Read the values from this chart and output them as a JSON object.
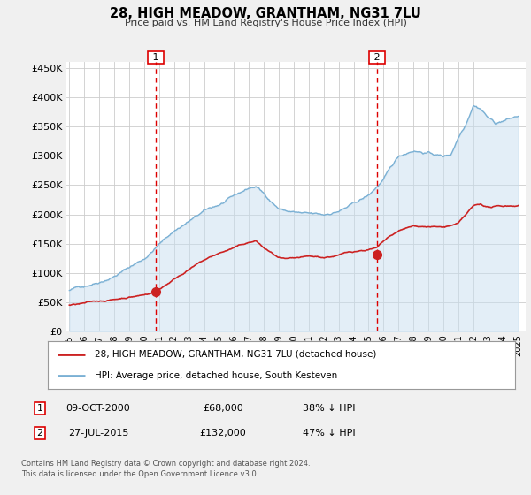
{
  "title": "28, HIGH MEADOW, GRANTHAM, NG31 7LU",
  "subtitle": "Price paid vs. HM Land Registry's House Price Index (HPI)",
  "ylabel_ticks": [
    "£0",
    "£50K",
    "£100K",
    "£150K",
    "£200K",
    "£250K",
    "£300K",
    "£350K",
    "£400K",
    "£450K"
  ],
  "ytick_values": [
    0,
    50000,
    100000,
    150000,
    200000,
    250000,
    300000,
    350000,
    400000,
    450000
  ],
  "ylim": [
    0,
    460000
  ],
  "xlim_start": 1994.8,
  "xlim_end": 2025.5,
  "xtick_years": [
    1995,
    1996,
    1997,
    1998,
    1999,
    2000,
    2001,
    2002,
    2003,
    2004,
    2005,
    2006,
    2007,
    2008,
    2009,
    2010,
    2011,
    2012,
    2013,
    2014,
    2015,
    2016,
    2017,
    2018,
    2019,
    2020,
    2021,
    2022,
    2023,
    2024,
    2025
  ],
  "bg_color": "#f0f0f0",
  "plot_bg_color": "#ffffff",
  "grid_color": "#cccccc",
  "hpi_line_color": "#7ab0d4",
  "hpi_fill_color": "#c8dff0",
  "price_line_color": "#cc2222",
  "vline_color": "#dd0000",
  "marker1_x": 2000.78,
  "marker1_y": 68000,
  "marker2_x": 2015.57,
  "marker2_y": 132000,
  "legend_label1": "28, HIGH MEADOW, GRANTHAM, NG31 7LU (detached house)",
  "legend_label2": "HPI: Average price, detached house, South Kesteven",
  "table_row1": [
    "1",
    "09-OCT-2000",
    "£68,000",
    "38% ↓ HPI"
  ],
  "table_row2": [
    "2",
    "27-JUL-2015",
    "£132,000",
    "47% ↓ HPI"
  ],
  "footer1": "Contains HM Land Registry data © Crown copyright and database right 2024.",
  "footer2": "This data is licensed under the Open Government Licence v3.0."
}
